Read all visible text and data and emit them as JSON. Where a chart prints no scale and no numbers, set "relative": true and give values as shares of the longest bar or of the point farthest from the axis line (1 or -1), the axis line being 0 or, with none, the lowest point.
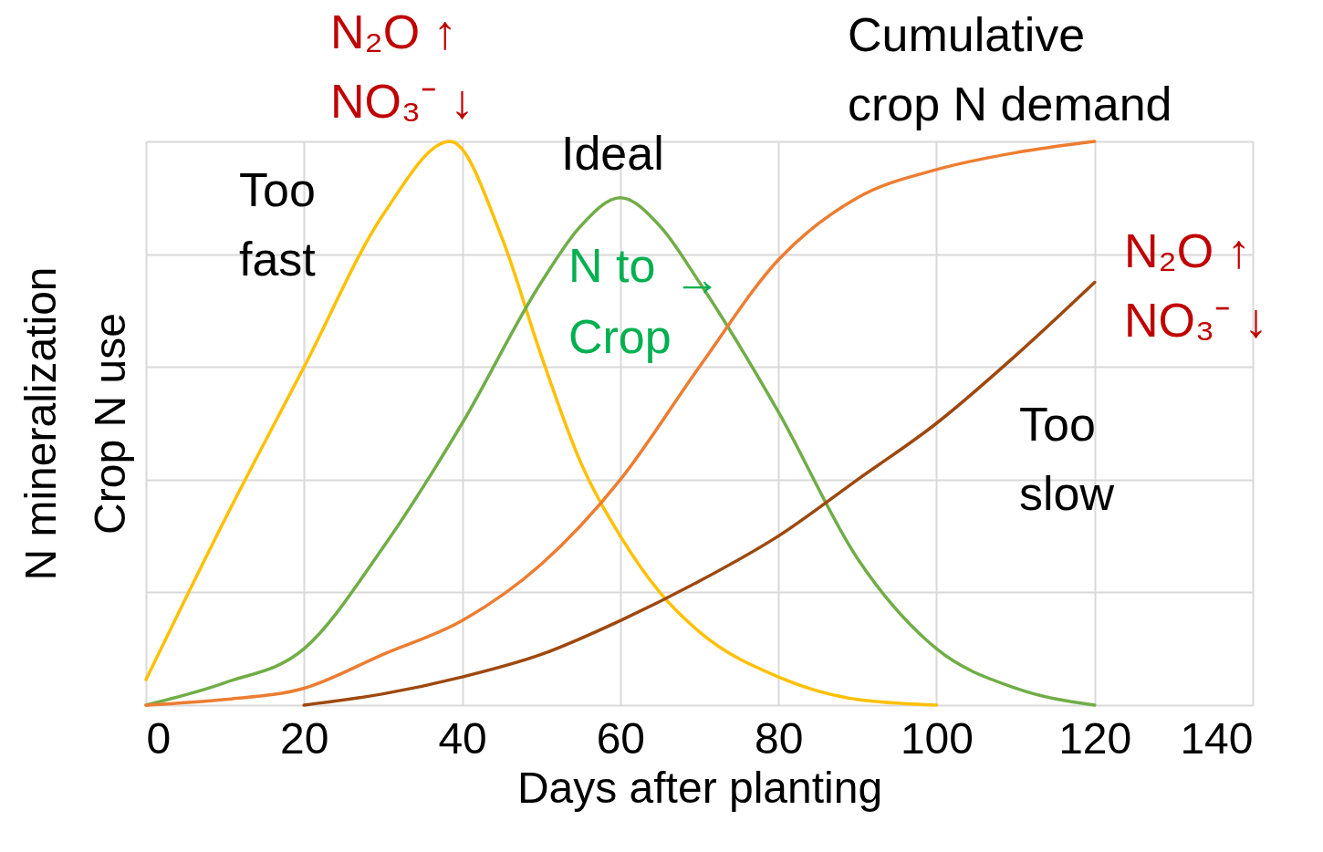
{
  "chart_data": {
    "type": "line",
    "relative": true,
    "xlabel": "Days after planting",
    "ylabel": "N mineralization\nCrop N use",
    "xlim": [
      0,
      140
    ],
    "xticks": [
      0,
      20,
      40,
      60,
      80,
      100,
      120,
      140
    ],
    "grid": true,
    "legend": false,
    "tick_labels": "x",
    "marker": "none",
    "line_style": "solid",
    "series": [
      {
        "name": "Too fast",
        "color": "#ffc000",
        "x": [
          0,
          10,
          20,
          30,
          38.5,
          45,
          50,
          55,
          60,
          65,
          70,
          80,
          90,
          100
        ],
        "values": [
          0.045,
          0.33,
          0.6,
          0.87,
          1.0,
          0.83,
          0.62,
          0.43,
          0.3,
          0.2,
          0.13,
          0.05,
          0.01,
          0
        ]
      },
      {
        "name": "Ideal",
        "color": "#70ad47",
        "x": [
          0,
          10,
          20,
          30,
          40,
          50,
          55,
          60,
          65,
          70,
          80,
          90,
          100,
          110,
          120
        ],
        "values": [
          0,
          0.04,
          0.1,
          0.28,
          0.5,
          0.75,
          0.85,
          0.9,
          0.85,
          0.75,
          0.52,
          0.26,
          0.1,
          0.03,
          0
        ]
      },
      {
        "name": "Cumulative crop N demand",
        "color": "#ed7d31",
        "x": [
          0,
          10,
          20,
          30,
          40,
          50,
          60,
          70,
          80,
          90,
          100,
          110,
          120
        ],
        "values": [
          0,
          0.01,
          0.03,
          0.09,
          0.15,
          0.25,
          0.4,
          0.6,
          0.79,
          0.9,
          0.95,
          0.98,
          1.0
        ]
      },
      {
        "name": "Too slow",
        "color": "#9e480e",
        "x": [
          20,
          30,
          40,
          50,
          60,
          70,
          80,
          90,
          100,
          110,
          120
        ],
        "values": [
          0,
          0.02,
          0.05,
          0.09,
          0.15,
          0.22,
          0.3,
          0.4,
          0.5,
          0.62,
          0.75
        ]
      }
    ],
    "annotations": [
      "N₂O ↑",
      "NO₃⁻ ↓",
      "N to Crop",
      "→",
      "N₂O ↑",
      "NO₃⁻ ↓"
    ]
  }
}
